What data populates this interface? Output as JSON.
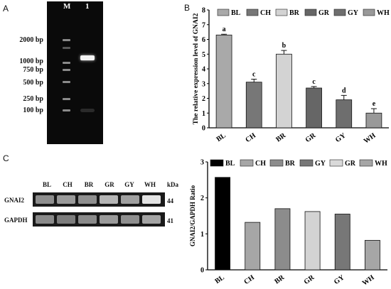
{
  "panels": {
    "a": "A",
    "b": "B",
    "c": "C"
  },
  "gel": {
    "lanes": [
      "M",
      "1"
    ],
    "ladder": [
      {
        "label": "2000 bp",
        "bp": 2000
      },
      {
        "label": "1000 bp",
        "bp": 1000
      },
      {
        "label": "750 bp",
        "bp": 750
      },
      {
        "label": "500 bp",
        "bp": 500
      },
      {
        "label": "250 bp",
        "bp": 250
      },
      {
        "label": "100 bp",
        "bp": 100
      }
    ]
  },
  "blot": {
    "lanes": [
      "BL",
      "CH",
      "BR",
      "GR",
      "GY",
      "WH"
    ],
    "kda_header": "kDa",
    "rows": [
      {
        "label": "GNAI2",
        "kda": "44"
      },
      {
        "label": "GAPDH",
        "kda": "41"
      }
    ]
  },
  "chart_data": [
    {
      "type": "bar",
      "panel": "B",
      "categories": [
        "BL",
        "CH",
        "BR",
        "GR",
        "GY",
        "WH"
      ],
      "values": [
        6.3,
        3.1,
        5.0,
        2.7,
        1.9,
        1.0
      ],
      "errors": [
        0.05,
        0.2,
        0.25,
        0.1,
        0.3,
        0.3
      ],
      "significance": [
        "a",
        "c",
        "b",
        "c",
        "d",
        "e"
      ],
      "ylabel": "The relative expression level of GNAI2",
      "xlabel": "",
      "ylim": [
        0,
        8
      ],
      "yticks": [
        0,
        1,
        2,
        3,
        4,
        5,
        6,
        7,
        8
      ],
      "legend": [
        "BL",
        "CH",
        "BR",
        "GR",
        "GY",
        "WH"
      ],
      "legend_position": "top",
      "colors": [
        "#a9a9a9",
        "#777777",
        "#d3d3d3",
        "#666666",
        "#6e6e6e",
        "#999999"
      ]
    },
    {
      "type": "bar",
      "panel": "C",
      "categories": [
        "BL",
        "CH",
        "BR",
        "GR",
        "GY",
        "WH"
      ],
      "values": [
        2.57,
        1.32,
        1.7,
        1.62,
        1.55,
        0.82
      ],
      "ylabel": "GNAI2/GAPDH Ratio",
      "xlabel": "",
      "ylim": [
        0,
        3
      ],
      "yticks": [
        0,
        1,
        2,
        3
      ],
      "legend": [
        "BL",
        "CH",
        "BR",
        "GY",
        "GR",
        "WH"
      ],
      "legend_colors": [
        "#000000",
        "#a6a6a6",
        "#8c8c8c",
        "#777777",
        "#d9d9d9",
        "#a6a6a6"
      ],
      "legend_position": "top",
      "colors": [
        "#000000",
        "#a6a6a6",
        "#8c8c8c",
        "#d3d3d3",
        "#777777",
        "#a6a6a6"
      ]
    }
  ]
}
